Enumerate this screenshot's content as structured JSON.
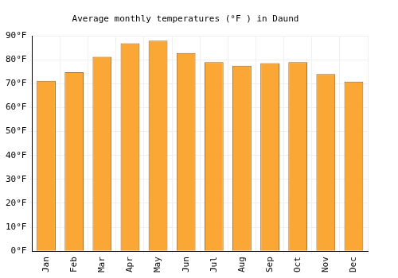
{
  "chart_data": {
    "type": "bar",
    "title": "Average monthly temperatures (°F ) in Daund",
    "categories": [
      "Jan",
      "Feb",
      "Mar",
      "Apr",
      "May",
      "Jun",
      "Jul",
      "Aug",
      "Sep",
      "Oct",
      "Nov",
      "Dec"
    ],
    "values": [
      71.2,
      74.8,
      81.3,
      86.9,
      88.0,
      82.8,
      79.0,
      77.5,
      78.6,
      79.0,
      74.0,
      70.9
    ],
    "color": "#fba735",
    "ylim": [
      0,
      90
    ],
    "yticks": [
      {
        "value": 0,
        "label": "0°F"
      },
      {
        "value": 10,
        "label": "10°F"
      },
      {
        "value": 20,
        "label": "20°F"
      },
      {
        "value": 30,
        "label": "30°F"
      },
      {
        "value": 40,
        "label": "40°F"
      },
      {
        "value": 50,
        "label": "50°F"
      },
      {
        "value": 60,
        "label": "60°F"
      },
      {
        "value": 70,
        "label": "70°F"
      },
      {
        "value": 80,
        "label": "80°F"
      },
      {
        "value": 90,
        "label": "90°F"
      }
    ],
    "grid": true
  }
}
